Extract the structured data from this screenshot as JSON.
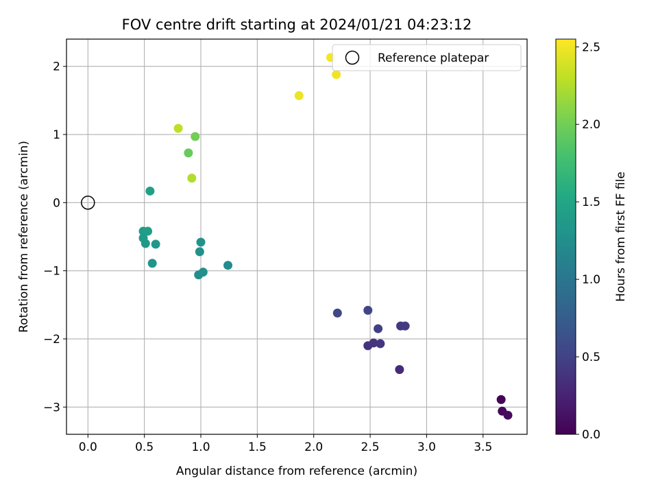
{
  "chart_data": {
    "type": "scatter",
    "title": "FOV centre drift starting at 2024/01/21 04:23:12",
    "xlabel": "Angular distance from reference (arcmin)",
    "ylabel": "Rotation from reference (arcmin)",
    "xlim": [
      -0.19,
      3.89
    ],
    "ylim": [
      -3.4,
      2.4
    ],
    "xticks": [
      0.0,
      0.5,
      1.0,
      1.5,
      2.0,
      2.5,
      3.0,
      3.5
    ],
    "xtick_labels": [
      "0.0",
      "0.5",
      "1.0",
      "1.5",
      "2.0",
      "2.5",
      "3.0",
      "3.5"
    ],
    "yticks": [
      -3,
      -2,
      -1,
      0,
      1,
      2
    ],
    "ytick_labels": [
      "−3",
      "−2",
      "−1",
      "0",
      "1",
      "2"
    ],
    "grid": true,
    "legend": {
      "position": "top-right",
      "entries": [
        {
          "label": "Reference platepar",
          "marker": "open-circle"
        }
      ]
    },
    "reference_point": {
      "x": 0.0,
      "y": 0.0,
      "label": "Reference platepar"
    },
    "colorbar": {
      "label": "Hours from first FF file",
      "colormap": "viridis",
      "range": [
        0.0,
        2.55
      ],
      "ticks": [
        0.0,
        0.5,
        1.0,
        1.5,
        2.0,
        2.5
      ],
      "tick_labels": [
        "0.0",
        "0.5",
        "1.0",
        "1.5",
        "2.0",
        "2.5"
      ]
    },
    "points": [
      {
        "x": 3.66,
        "y": -2.89,
        "hours": 0.02
      },
      {
        "x": 3.67,
        "y": -3.06,
        "hours": 0.05
      },
      {
        "x": 3.72,
        "y": -3.12,
        "hours": 0.08
      },
      {
        "x": 2.76,
        "y": -2.45,
        "hours": 0.3
      },
      {
        "x": 2.48,
        "y": -2.1,
        "hours": 0.36
      },
      {
        "x": 2.53,
        "y": -2.06,
        "hours": 0.38
      },
      {
        "x": 2.59,
        "y": -2.07,
        "hours": 0.4
      },
      {
        "x": 2.77,
        "y": -1.81,
        "hours": 0.42
      },
      {
        "x": 2.81,
        "y": -1.81,
        "hours": 0.44
      },
      {
        "x": 2.57,
        "y": -1.85,
        "hours": 0.48
      },
      {
        "x": 2.48,
        "y": -1.58,
        "hours": 0.52
      },
      {
        "x": 2.21,
        "y": -1.62,
        "hours": 0.56
      },
      {
        "x": 1.24,
        "y": -0.92,
        "hours": 1.22
      },
      {
        "x": 0.98,
        "y": -1.06,
        "hours": 1.24
      },
      {
        "x": 1.02,
        "y": -1.02,
        "hours": 1.26
      },
      {
        "x": 0.99,
        "y": -0.72,
        "hours": 1.28
      },
      {
        "x": 1.0,
        "y": -0.58,
        "hours": 1.3
      },
      {
        "x": 0.57,
        "y": -0.89,
        "hours": 1.32
      },
      {
        "x": 0.6,
        "y": -0.61,
        "hours": 1.34
      },
      {
        "x": 0.51,
        "y": -0.6,
        "hours": 1.36
      },
      {
        "x": 0.49,
        "y": -0.52,
        "hours": 1.38
      },
      {
        "x": 0.49,
        "y": -0.42,
        "hours": 1.4
      },
      {
        "x": 0.53,
        "y": -0.42,
        "hours": 1.42
      },
      {
        "x": 0.55,
        "y": 0.17,
        "hours": 1.44
      },
      {
        "x": 0.89,
        "y": 0.73,
        "hours": 1.95
      },
      {
        "x": 0.95,
        "y": 0.97,
        "hours": 2.0
      },
      {
        "x": 0.92,
        "y": 0.36,
        "hours": 2.25
      },
      {
        "x": 0.8,
        "y": 1.09,
        "hours": 2.3
      },
      {
        "x": 1.87,
        "y": 1.57,
        "hours": 2.48
      },
      {
        "x": 2.2,
        "y": 1.88,
        "hours": 2.5
      },
      {
        "x": 2.15,
        "y": 2.13,
        "hours": 2.52
      }
    ]
  }
}
